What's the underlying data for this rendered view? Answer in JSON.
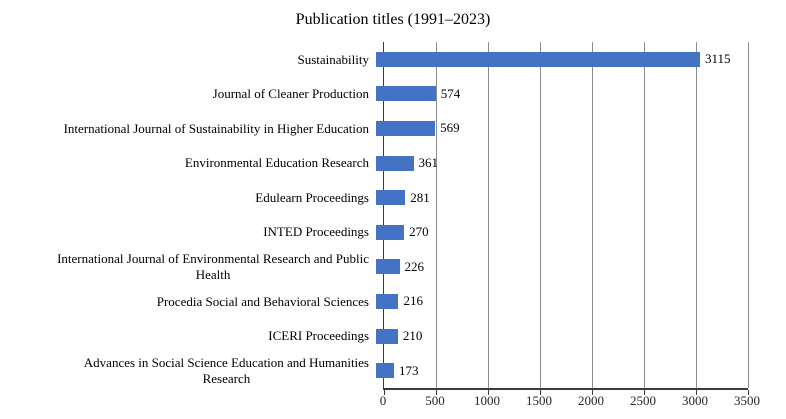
{
  "chart_data": {
    "type": "bar",
    "orientation": "horizontal",
    "title": "Publication titles (1991–2023)",
    "categories": [
      "Sustainability",
      "Journal of Cleaner Production",
      "International Journal of Sustainability in Higher Education",
      "Environmental Education Research",
      "Edulearn Proceedings",
      "INTED Proceedings",
      "International Journal of Environmental Research and Public\nHealth",
      "Procedia Social and Behavioral Sciences",
      "ICERI Proceedings",
      "Advances in Social Science Education and Humanities\nResearch"
    ],
    "values": [
      3115,
      574,
      569,
      361,
      281,
      270,
      226,
      216,
      210,
      173
    ],
    "data_labels": [
      "3115",
      "574",
      "569",
      "361",
      "281",
      "270",
      "226",
      "216",
      "210",
      "173"
    ],
    "xlabel": "",
    "ylabel": "",
    "xlim": [
      0,
      3500
    ],
    "xticks": [
      0,
      500,
      1000,
      1500,
      2000,
      2500,
      3000,
      3500
    ],
    "grid": true,
    "legend_position": "none",
    "bar_color": "#4472C4",
    "gridline_color": "#8C8C8C",
    "axis_color": "#3B3B3B",
    "text_color": "#000000"
  }
}
